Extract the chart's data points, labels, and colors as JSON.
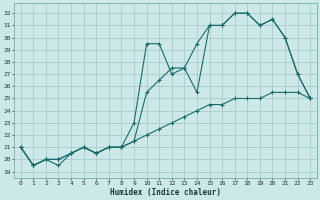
{
  "xlabel": "Humidex (Indice chaleur)",
  "background_color": "#cce8e8",
  "grid_color": "#aacccc",
  "line_color": "#1a6b6b",
  "xlim": [
    -0.5,
    23.5
  ],
  "ylim": [
    18.5,
    32.8
  ],
  "yticks": [
    19,
    20,
    21,
    22,
    23,
    24,
    25,
    26,
    27,
    28,
    29,
    30,
    31,
    32
  ],
  "xticks": [
    0,
    1,
    2,
    3,
    4,
    5,
    6,
    7,
    8,
    9,
    10,
    11,
    12,
    13,
    14,
    15,
    16,
    17,
    18,
    19,
    20,
    21,
    22,
    23
  ],
  "line1_x": [
    0,
    1,
    2,
    3,
    4,
    5,
    6,
    7,
    8,
    9,
    10,
    11,
    12,
    13,
    14,
    15,
    16,
    17,
    18,
    19,
    20,
    21,
    22,
    23
  ],
  "line1_y": [
    21.0,
    19.5,
    20.0,
    19.5,
    20.5,
    21.0,
    20.5,
    21.0,
    21.0,
    21.5,
    25.5,
    26.5,
    27.5,
    27.5,
    29.5,
    31.0,
    31.0,
    32.0,
    32.0,
    31.0,
    31.5,
    30.0,
    27.0,
    25.0
  ],
  "line2_x": [
    0,
    1,
    2,
    3,
    4,
    5,
    6,
    7,
    8,
    9,
    10,
    11,
    12,
    13,
    14,
    15,
    16,
    17,
    18,
    19,
    20,
    21,
    22,
    23
  ],
  "line2_y": [
    21.0,
    19.5,
    20.0,
    20.0,
    20.5,
    21.0,
    20.5,
    21.0,
    21.0,
    23.0,
    29.5,
    29.5,
    27.0,
    27.5,
    25.5,
    31.0,
    31.0,
    32.0,
    32.0,
    31.0,
    31.5,
    30.0,
    27.0,
    25.0
  ],
  "line3_x": [
    0,
    1,
    2,
    3,
    4,
    5,
    6,
    7,
    8,
    9,
    10,
    11,
    12,
    13,
    14,
    15,
    16,
    17,
    18,
    19,
    20,
    21,
    22,
    23
  ],
  "line3_y": [
    21.0,
    19.5,
    20.0,
    20.0,
    20.5,
    21.0,
    20.5,
    21.0,
    21.0,
    21.5,
    22.0,
    22.5,
    23.0,
    23.5,
    24.0,
    24.5,
    24.5,
    25.0,
    25.0,
    25.0,
    25.5,
    25.5,
    25.5,
    25.0
  ]
}
